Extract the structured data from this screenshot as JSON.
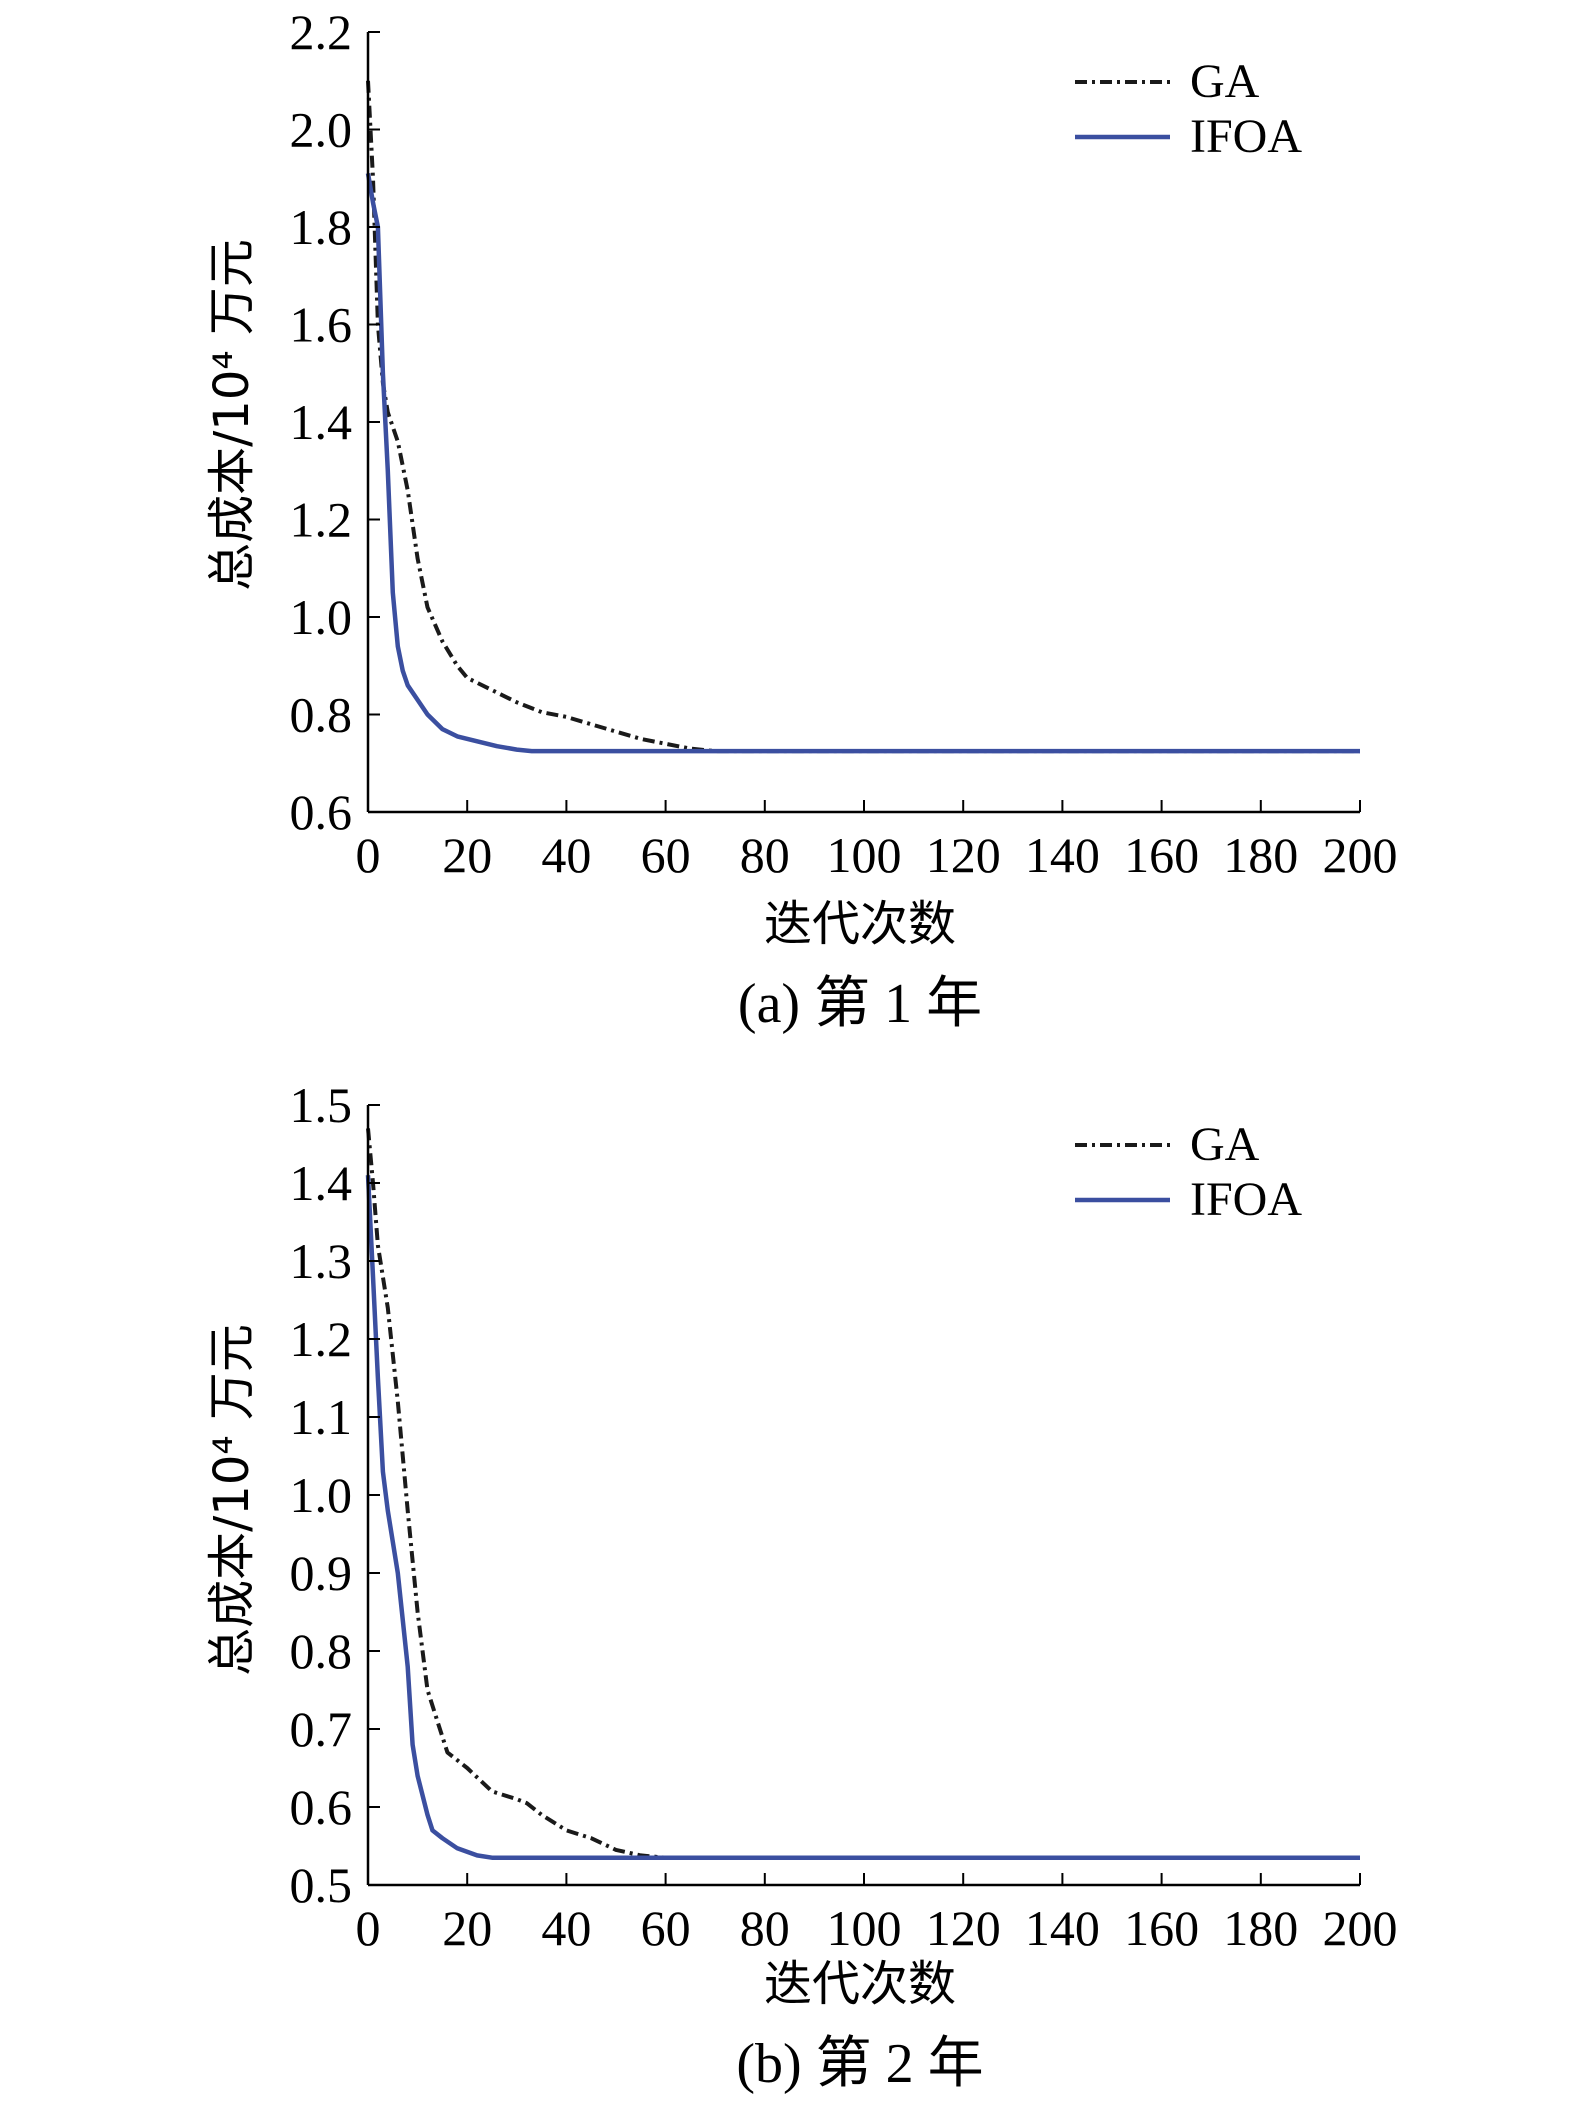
{
  "colors": {
    "ga": "#1a1a1a",
    "ifoa": "#3b4fa0",
    "axis": "#000000"
  },
  "chart_data": [
    {
      "type": "line",
      "caption": "(a) 第 1 年",
      "xlabel": "迭代次数",
      "ylabel": "总成本/10⁴ 万元",
      "xlim": [
        0,
        200
      ],
      "ylim": [
        0.6,
        2.2
      ],
      "xticks": [
        0,
        20,
        40,
        60,
        80,
        100,
        120,
        140,
        160,
        180,
        200
      ],
      "yticks": [
        "0.6",
        "0.8",
        "1.0",
        "1.2",
        "1.4",
        "1.6",
        "1.8",
        "2.0",
        "2.2"
      ],
      "grid": false,
      "legend_position": "top-right",
      "series": [
        {
          "name": "GA",
          "style": "dash-dot",
          "x": [
            0,
            1,
            2,
            3,
            4,
            6,
            8,
            10,
            12,
            15,
            18,
            20,
            25,
            30,
            35,
            40,
            45,
            50,
            55,
            60,
            65,
            70,
            80,
            100,
            150,
            200
          ],
          "y": [
            2.1,
            1.9,
            1.6,
            1.48,
            1.42,
            1.36,
            1.26,
            1.12,
            1.02,
            0.95,
            0.9,
            0.875,
            0.85,
            0.825,
            0.805,
            0.795,
            0.78,
            0.765,
            0.75,
            0.74,
            0.73,
            0.725,
            0.725,
            0.725,
            0.725,
            0.725
          ]
        },
        {
          "name": "IFOA",
          "style": "solid",
          "x": [
            0,
            1,
            2,
            3,
            4,
            5,
            6,
            7,
            8,
            10,
            12,
            15,
            18,
            22,
            26,
            30,
            33,
            40,
            60,
            100,
            150,
            200
          ],
          "y": [
            1.91,
            1.85,
            1.8,
            1.5,
            1.3,
            1.05,
            0.94,
            0.89,
            0.86,
            0.83,
            0.8,
            0.77,
            0.755,
            0.745,
            0.735,
            0.728,
            0.725,
            0.725,
            0.725,
            0.725,
            0.725,
            0.725
          ]
        }
      ]
    },
    {
      "type": "line",
      "caption": "(b) 第 2 年",
      "xlabel": "迭代次数",
      "ylabel": "总成本/10⁴ 万元",
      "xlim": [
        0,
        200
      ],
      "ylim": [
        0.5,
        1.5
      ],
      "xticks": [
        0,
        20,
        40,
        60,
        80,
        100,
        120,
        140,
        160,
        180,
        200
      ],
      "yticks": [
        "0.5",
        "0.6",
        "0.7",
        "0.8",
        "0.9",
        "1.0",
        "1.1",
        "1.2",
        "1.3",
        "1.4",
        "1.5"
      ],
      "grid": false,
      "legend_position": "top-right",
      "series": [
        {
          "name": "GA",
          "style": "dash-dot",
          "x": [
            0,
            1,
            2,
            4,
            6,
            8,
            10,
            12,
            14,
            16,
            20,
            25,
            30,
            32,
            35,
            40,
            45,
            50,
            55,
            60,
            100,
            150,
            200
          ],
          "y": [
            1.47,
            1.4,
            1.32,
            1.24,
            1.12,
            0.98,
            0.85,
            0.75,
            0.71,
            0.67,
            0.65,
            0.62,
            0.61,
            0.605,
            0.59,
            0.57,
            0.56,
            0.545,
            0.538,
            0.535,
            0.535,
            0.535,
            0.535
          ]
        },
        {
          "name": "IFOA",
          "style": "solid",
          "x": [
            0,
            1,
            2,
            3,
            4,
            6,
            8,
            9,
            10,
            12,
            13,
            15,
            18,
            22,
            25,
            40,
            100,
            150,
            200
          ],
          "y": [
            1.41,
            1.28,
            1.15,
            1.03,
            0.98,
            0.9,
            0.78,
            0.68,
            0.64,
            0.59,
            0.57,
            0.56,
            0.547,
            0.538,
            0.535,
            0.535,
            0.535,
            0.535,
            0.535
          ]
        }
      ]
    }
  ]
}
